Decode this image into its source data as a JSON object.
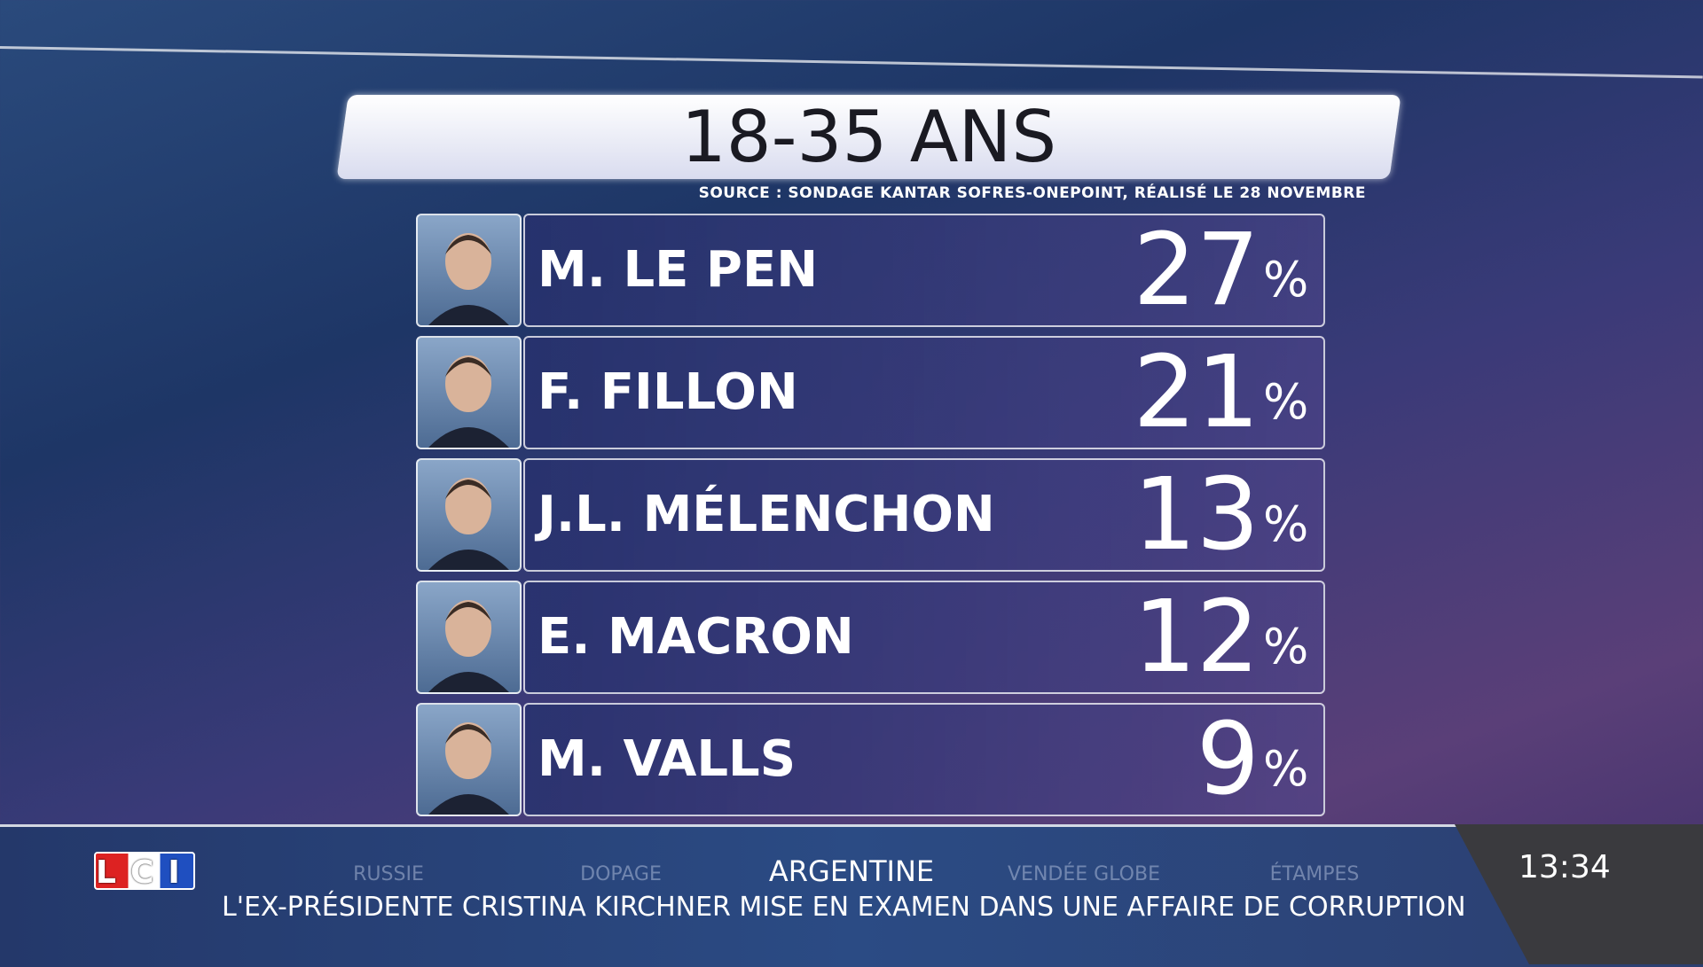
{
  "header": {
    "title": "18-35 ANS",
    "source": "SOURCE : SONDAGE KANTAR SOFRES-ONEPOINT, RÉALISÉ LE 28 NOVEMBRE"
  },
  "rows": [
    {
      "name": "M. LE PEN",
      "value": 27,
      "unit": "%"
    },
    {
      "name": "F. FILLON",
      "value": 21,
      "unit": "%"
    },
    {
      "name": "J.L. MÉLENCHON",
      "value": 13,
      "unit": "%"
    },
    {
      "name": "E. MACRON",
      "value": 12,
      "unit": "%"
    },
    {
      "name": "M. VALLS",
      "value": 9,
      "unit": "%"
    }
  ],
  "ticker": {
    "logo": "LCI",
    "topics": [
      "RUSSIE",
      "DOPAGE",
      "ARGENTINE",
      "VENDÉE GLOBE",
      "ÉTAMPES"
    ],
    "active_topic": 2,
    "headline": "L'EX-PRÉSIDENTE CRISTINA KIRCHNER MISE EN EXAMEN DANS UNE AFFAIRE DE CORRUPTION",
    "clock": "13:34"
  }
}
